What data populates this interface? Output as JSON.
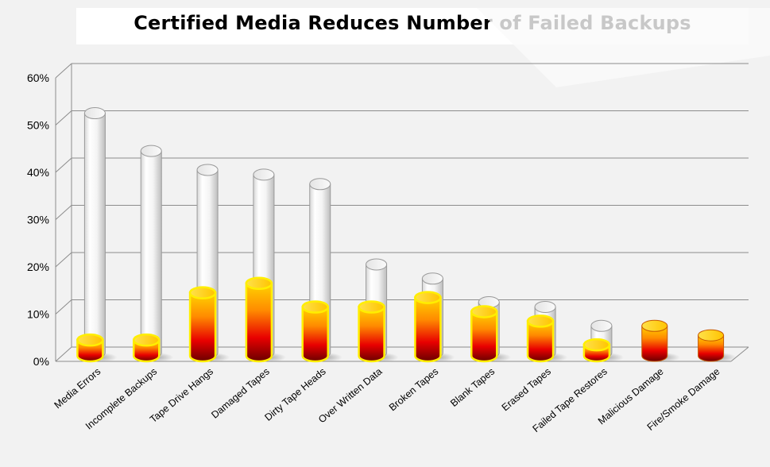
{
  "chart_data": {
    "type": "bar",
    "title": "Certified Media Reduces Number of Failed Backups",
    "xlabel": "",
    "ylabel": "",
    "ylim": [
      0,
      60
    ],
    "yticks": [
      "0%",
      "10%",
      "20%",
      "30%",
      "40%",
      "50%",
      "60%"
    ],
    "categories": [
      "Media Errors",
      "Incomplete Backups",
      "Tape Drive Hangs",
      "Damaged Tapes",
      "Dirty Tape Heads",
      "Over Written Data",
      "Broken Tapes",
      "Blank Tapes",
      "Erased Tapes",
      "Failed Tape Restores",
      "Malicious Damage",
      "Fire/Smoke Damage"
    ],
    "series": [
      {
        "values": [
          51,
          43,
          39,
          38,
          36,
          19,
          16,
          11,
          10,
          6,
          0,
          0
        ],
        "color": "#ffffff"
      },
      {
        "values": [
          3,
          3,
          13,
          15,
          10,
          10,
          12,
          9,
          7,
          2,
          6,
          4
        ],
        "color": "#ff6600"
      }
    ],
    "grid": true
  }
}
